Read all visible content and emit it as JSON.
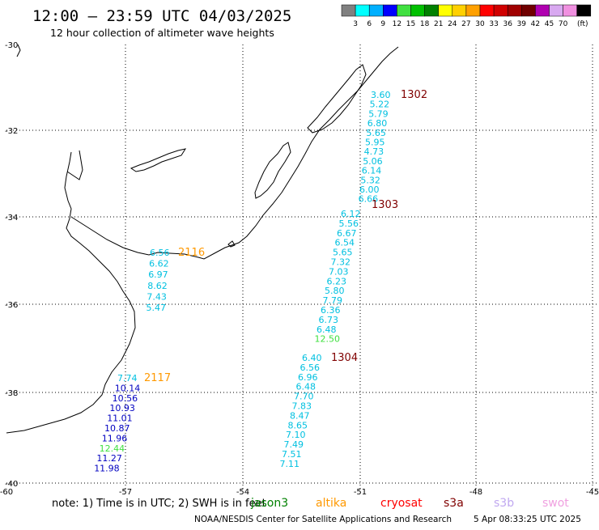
{
  "header": {
    "title": "12:00 – 23:59 UTC 04/03/2025",
    "subtitle": "12 hour collection of altimeter wave heights"
  },
  "legend": {
    "colors": [
      "#808080",
      "#00ffff",
      "#00b0ff",
      "#0000ff",
      "#40e040",
      "#00c000",
      "#008000",
      "#ffff00",
      "#ffd000",
      "#ffa000",
      "#ff0000",
      "#d00000",
      "#a00000",
      "#700000",
      "#b000b0",
      "#d8a8f0",
      "#f090e0",
      "#000000"
    ],
    "labels": [
      "3",
      "6",
      "9",
      "12",
      "15",
      "18",
      "21",
      "24",
      "27",
      "30",
      "33",
      "36",
      "39",
      "42",
      "45",
      "70"
    ],
    "unit": "(ft)"
  },
  "axes": {
    "y_labels": [
      "-30",
      "-32",
      "-34",
      "-36",
      "-38",
      "-40"
    ],
    "x_labels": [
      "-60",
      "-57",
      "-54",
      "-51",
      "-48",
      "-45"
    ]
  },
  "tracks": [
    {
      "id": "1302",
      "id_color": "#800000",
      "values": [
        "3.60",
        "5.22",
        "5.79",
        "6.80",
        "5.65",
        "5.95",
        "4.73",
        "5.06",
        "6.14",
        "5.32",
        "6.00",
        "6.66"
      ],
      "colors": [
        "#00c0e0",
        "#00c0e0",
        "#00c0e0",
        "#00c0e0",
        "#00c0e0",
        "#00c0e0",
        "#00c0e0",
        "#00c0e0",
        "#00c0e0",
        "#00c0e0",
        "#00c0e0",
        "#00c0e0"
      ]
    },
    {
      "id": "1303",
      "id_color": "#800000",
      "values": [
        "6.12",
        "5.56",
        "6.67",
        "6.54",
        "5.65",
        "7.32",
        "7.03",
        "6.23",
        "5.80",
        "7.79",
        "6.36",
        "6.73",
        "6.48",
        "12.50"
      ],
      "colors": [
        "#00c0e0",
        "#00c0e0",
        "#00c0e0",
        "#00c0e0",
        "#00c0e0",
        "#00c0e0",
        "#00c0e0",
        "#00c0e0",
        "#00c0e0",
        "#00c0e0",
        "#00c0e0",
        "#00c0e0",
        "#00c0e0",
        "#40e040"
      ]
    },
    {
      "id": "1304",
      "id_color": "#800000",
      "values": [
        "6.40",
        "6.56",
        "6.96",
        "6.48",
        "7.70",
        "7.83",
        "8.47",
        "8.65",
        "7.10",
        "7.49",
        "7.51",
        "7.11"
      ],
      "colors": [
        "#00c0e0",
        "#00c0e0",
        "#00c0e0",
        "#00c0e0",
        "#00c0e0",
        "#00c0e0",
        "#00c0e0",
        "#00c0e0",
        "#00c0e0",
        "#00c0e0",
        "#00c0e0",
        "#00c0e0"
      ]
    },
    {
      "id": "2116",
      "id_color": "#ff9900",
      "values": [
        "6.56",
        "6.62",
        "6.97",
        "8.62",
        "7.43",
        "5.47"
      ],
      "colors": [
        "#00c0e0",
        "#00c0e0",
        "#00c0e0",
        "#00c0e0",
        "#00c0e0",
        "#00c0e0"
      ]
    },
    {
      "id": "2117",
      "id_color": "#ff9900",
      "values": [
        "7.74",
        "10.14",
        "10.56",
        "10.93",
        "11.01",
        "10.87",
        "11.96",
        "12.44",
        "11.27",
        "11.98"
      ],
      "colors": [
        "#00c0e0",
        "#0000c0",
        "#0000c0",
        "#0000c0",
        "#0000c0",
        "#0000c0",
        "#0000c0",
        "#40e040",
        "#0000c0",
        "#0000c0"
      ]
    }
  ],
  "footer": {
    "note": "note: 1) Time is in UTC; 2) SWH is in feet",
    "satellites": [
      {
        "name": "jason3",
        "color": "#008000"
      },
      {
        "name": "altika",
        "color": "#ff9900"
      },
      {
        "name": "cryosat",
        "color": "#ff0000"
      },
      {
        "name": "s3a",
        "color": "#800000"
      },
      {
        "name": "s3b",
        "color": "#c0a8f0"
      },
      {
        "name": "swot",
        "color": "#f0a0e0"
      }
    ],
    "credit": "NOAA/NESDIS Center for Satellite Applications and Research",
    "timestamp": "5 Apr 08:33:25 UTC 2025"
  }
}
